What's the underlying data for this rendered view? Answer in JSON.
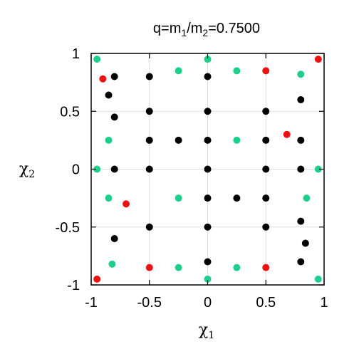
{
  "chart_data": {
    "type": "scatter",
    "title": {
      "prefix": "q=m",
      "sub1": "1",
      "mid": "/m",
      "sub2": "2",
      "suffix": "=0.7500"
    },
    "xlabel": {
      "base": "χ",
      "sub": "1"
    },
    "ylabel": {
      "base": "χ",
      "sub": "2"
    },
    "xlim": [
      -1,
      1
    ],
    "ylim": [
      -1,
      1
    ],
    "xticks": [
      {
        "value": -1,
        "label": "-1"
      },
      {
        "value": -0.5,
        "label": "-0.5"
      },
      {
        "value": 0,
        "label": "0"
      },
      {
        "value": 0.5,
        "label": "0.5"
      },
      {
        "value": 1,
        "label": "1"
      }
    ],
    "yticks": [
      {
        "value": -1,
        "label": "-1"
      },
      {
        "value": -0.5,
        "label": "-0.5"
      },
      {
        "value": 0,
        "label": "0"
      },
      {
        "value": 0.5,
        "label": "0.5"
      },
      {
        "value": 1,
        "label": "1"
      }
    ],
    "grid": true,
    "colors": {
      "black": "#000000",
      "green": "#1ecf8c",
      "red": "#ee1111"
    },
    "series": [
      {
        "color": "black",
        "points": [
          [
            -0.8,
            0.8
          ],
          [
            -0.5,
            0.8
          ],
          [
            0,
            0.8
          ],
          [
            -0.85,
            0.64
          ],
          [
            0.8,
            0.6
          ],
          [
            -0.8,
            0.45
          ],
          [
            -0.5,
            0.5
          ],
          [
            0,
            0.5
          ],
          [
            0.5,
            0.5
          ],
          [
            -0.5,
            0.25
          ],
          [
            -0.25,
            0.25
          ],
          [
            0,
            0.25
          ],
          [
            0.5,
            0.25
          ],
          [
            0.8,
            0.25
          ],
          [
            -0.8,
            0
          ],
          [
            -0.5,
            0
          ],
          [
            0,
            0
          ],
          [
            0.5,
            0
          ],
          [
            0.8,
            0
          ],
          [
            0,
            -0.25
          ],
          [
            0.25,
            -0.25
          ],
          [
            0.5,
            -0.25
          ],
          [
            0.8,
            -0.45
          ],
          [
            0.84,
            -0.64
          ],
          [
            -0.5,
            -0.5
          ],
          [
            0,
            -0.5
          ],
          [
            0.5,
            -0.5
          ],
          [
            -0.8,
            -0.6
          ],
          [
            0,
            -0.8
          ],
          [
            0.8,
            -0.8
          ]
        ]
      },
      {
        "color": "green",
        "points": [
          [
            -0.95,
            0.95
          ],
          [
            0,
            0.95
          ],
          [
            -0.25,
            0.85
          ],
          [
            0.25,
            0.85
          ],
          [
            0.8,
            0.82
          ],
          [
            -0.85,
            0.25
          ],
          [
            0.25,
            0.25
          ],
          [
            -0.95,
            0
          ],
          [
            0.95,
            0
          ],
          [
            -0.85,
            -0.25
          ],
          [
            -0.25,
            -0.25
          ],
          [
            0.85,
            -0.25
          ],
          [
            -0.82,
            -0.82
          ],
          [
            -0.25,
            -0.85
          ],
          [
            0.25,
            -0.85
          ],
          [
            0,
            -0.95
          ],
          [
            0.95,
            -0.95
          ]
        ]
      },
      {
        "color": "red",
        "points": [
          [
            -0.9,
            0.78
          ],
          [
            0.5,
            0.85
          ],
          [
            0.95,
            0.95
          ],
          [
            0.68,
            0.3
          ],
          [
            -0.7,
            -0.3
          ],
          [
            -0.5,
            -0.85
          ],
          [
            0.5,
            -0.85
          ],
          [
            -0.95,
            -0.95
          ]
        ]
      }
    ]
  }
}
